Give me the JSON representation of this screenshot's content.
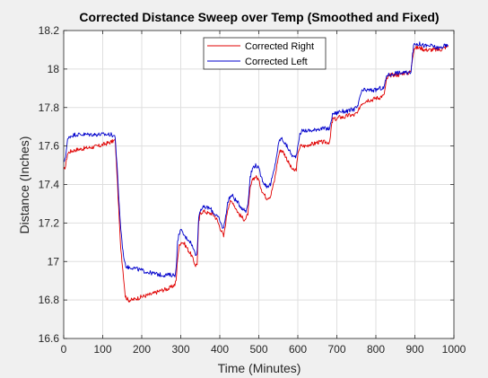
{
  "chart_data": {
    "type": "line",
    "title": "Corrected Distance Sweep over Temp (Smoothed and Fixed)",
    "xlabel": "Time (Minutes)",
    "ylabel": "Distance (Inches)",
    "xlim": [
      0,
      1000
    ],
    "ylim": [
      16.6,
      18.2
    ],
    "xticks": [
      0,
      100,
      200,
      300,
      400,
      500,
      600,
      700,
      800,
      900,
      1000
    ],
    "yticks": [
      16.6,
      16.8,
      17,
      17.2,
      17.4,
      17.6,
      17.8,
      18,
      18.2
    ],
    "xtick_labels": [
      "0",
      "100",
      "200",
      "300",
      "400",
      "500",
      "600",
      "700",
      "800",
      "900",
      "1000"
    ],
    "ytick_labels": [
      "16.6",
      "16.8",
      "17",
      "17.2",
      "17.4",
      "17.6",
      "17.8",
      "18",
      "18.2"
    ],
    "grid": true,
    "legend_position": "top-center",
    "series": [
      {
        "name": "Corrected Right",
        "color": "#e00000",
        "x": [
          0,
          5,
          10,
          15,
          30,
          60,
          90,
          120,
          132,
          138,
          145,
          152,
          158,
          165,
          175,
          190,
          205,
          225,
          250,
          270,
          285,
          288,
          292,
          296,
          300,
          305,
          310,
          316,
          322,
          328,
          333,
          338,
          342,
          346,
          350,
          356,
          362,
          370,
          378,
          385,
          392,
          398,
          404,
          410,
          415,
          420,
          424,
          428,
          433,
          440,
          448,
          456,
          462,
          467,
          472,
          478,
          485,
          492,
          498,
          503,
          508,
          513,
          520,
          530,
          540,
          548,
          553,
          558,
          562,
          568,
          575,
          582,
          590,
          596,
          602,
          607,
          612,
          617,
          622,
          630,
          640,
          650,
          660,
          670,
          678,
          682,
          686,
          690,
          695,
          700,
          705,
          712,
          720,
          730,
          738,
          744,
          750,
          754,
          758,
          763,
          770,
          780,
          790,
          800,
          808,
          815,
          820,
          824,
          828,
          833,
          840,
          850,
          860,
          870,
          878,
          885,
          890,
          894,
          898,
          905,
          915,
          925,
          935,
          945,
          955,
          965,
          975,
          985
        ],
        "y": [
          17.47,
          17.5,
          17.56,
          17.57,
          17.58,
          17.59,
          17.6,
          17.62,
          17.63,
          17.4,
          17.1,
          16.95,
          16.82,
          16.8,
          16.8,
          16.81,
          16.82,
          16.83,
          16.85,
          16.86,
          16.88,
          16.9,
          17.02,
          17.08,
          17.1,
          17.1,
          17.09,
          17.07,
          17.05,
          17.03,
          17.0,
          16.98,
          16.99,
          17.2,
          17.25,
          17.26,
          17.26,
          17.25,
          17.25,
          17.24,
          17.22,
          17.19,
          17.16,
          17.13,
          17.2,
          17.27,
          17.3,
          17.31,
          17.31,
          17.28,
          17.25,
          17.23,
          17.22,
          17.22,
          17.25,
          17.38,
          17.43,
          17.44,
          17.43,
          17.4,
          17.37,
          17.35,
          17.33,
          17.34,
          17.42,
          17.52,
          17.57,
          17.58,
          17.57,
          17.55,
          17.52,
          17.49,
          17.47,
          17.48,
          17.58,
          17.6,
          17.6,
          17.6,
          17.6,
          17.61,
          17.61,
          17.62,
          17.62,
          17.62,
          17.62,
          17.62,
          17.7,
          17.74,
          17.74,
          17.74,
          17.75,
          17.75,
          17.75,
          17.76,
          17.76,
          17.76,
          17.77,
          17.77,
          17.8,
          17.82,
          17.83,
          17.84,
          17.84,
          17.85,
          17.85,
          17.86,
          17.86,
          17.9,
          17.95,
          17.96,
          17.97,
          17.97,
          17.97,
          17.98,
          17.98,
          17.98,
          17.99,
          18.06,
          18.11,
          18.11,
          18.11,
          18.1,
          18.1,
          18.1,
          18.1,
          18.1,
          18.11,
          18.12
        ]
      },
      {
        "name": "Corrected Left",
        "color": "#0000cc",
        "x": [
          0,
          5,
          10,
          15,
          30,
          60,
          90,
          120,
          132,
          138,
          145,
          152,
          158,
          165,
          175,
          190,
          205,
          225,
          250,
          270,
          285,
          288,
          292,
          296,
          300,
          305,
          310,
          316,
          322,
          328,
          333,
          338,
          342,
          346,
          350,
          356,
          362,
          370,
          378,
          385,
          392,
          398,
          404,
          410,
          415,
          420,
          424,
          428,
          433,
          440,
          448,
          456,
          462,
          467,
          472,
          478,
          485,
          492,
          498,
          503,
          508,
          513,
          520,
          530,
          540,
          548,
          553,
          558,
          562,
          568,
          575,
          582,
          590,
          596,
          602,
          607,
          612,
          617,
          622,
          630,
          640,
          650,
          660,
          670,
          678,
          682,
          686,
          690,
          695,
          700,
          705,
          712,
          720,
          730,
          738,
          744,
          750,
          754,
          758,
          763,
          770,
          780,
          790,
          800,
          808,
          815,
          820,
          824,
          828,
          833,
          840,
          850,
          860,
          870,
          878,
          885,
          890,
          894,
          898,
          905,
          915,
          925,
          935,
          945,
          955,
          965,
          975,
          985
        ],
        "y": [
          17.51,
          17.55,
          17.63,
          17.65,
          17.66,
          17.66,
          17.66,
          17.66,
          17.65,
          17.45,
          17.2,
          17.05,
          16.98,
          16.97,
          16.97,
          16.96,
          16.95,
          16.94,
          16.93,
          16.93,
          16.93,
          16.96,
          17.1,
          17.15,
          17.16,
          17.15,
          17.13,
          17.12,
          17.11,
          17.09,
          17.06,
          17.04,
          17.05,
          17.23,
          17.27,
          17.28,
          17.28,
          17.28,
          17.27,
          17.25,
          17.24,
          17.22,
          17.19,
          17.17,
          17.24,
          17.3,
          17.33,
          17.34,
          17.34,
          17.32,
          17.3,
          17.28,
          17.27,
          17.26,
          17.3,
          17.44,
          17.49,
          17.5,
          17.49,
          17.46,
          17.43,
          17.41,
          17.39,
          17.4,
          17.48,
          17.58,
          17.63,
          17.64,
          17.63,
          17.61,
          17.59,
          17.56,
          17.54,
          17.55,
          17.63,
          17.67,
          17.68,
          17.68,
          17.68,
          17.68,
          17.68,
          17.69,
          17.69,
          17.69,
          17.69,
          17.69,
          17.74,
          17.77,
          17.77,
          17.77,
          17.78,
          17.78,
          17.78,
          17.78,
          17.79,
          17.79,
          17.8,
          17.8,
          17.85,
          17.88,
          17.89,
          17.89,
          17.89,
          17.89,
          17.9,
          17.9,
          17.9,
          17.93,
          17.97,
          17.97,
          17.97,
          17.98,
          17.98,
          17.98,
          17.98,
          17.98,
          17.99,
          18.08,
          18.13,
          18.13,
          18.13,
          18.12,
          18.12,
          18.12,
          18.11,
          18.11,
          18.12,
          18.12
        ]
      }
    ]
  }
}
